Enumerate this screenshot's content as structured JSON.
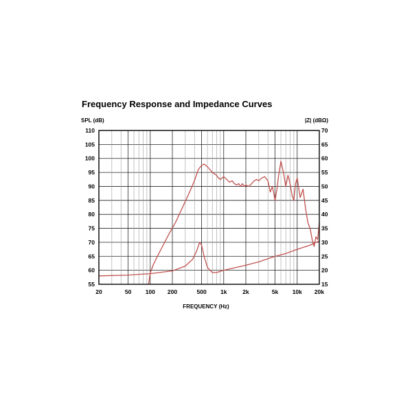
{
  "chart_data": {
    "type": "line",
    "title": "Frequency Response and Impedance Curves",
    "xlabel": "FREQUENCY (Hz)",
    "ylabel_left": "SPL (dB)",
    "ylabel_right": "|Z| (dBΩ)",
    "x_scale": "log",
    "xlim": [
      20,
      20000
    ],
    "ylim_left": [
      55,
      110
    ],
    "ylim_right": [
      15,
      70
    ],
    "grid": true,
    "x_ticks": [
      {
        "value": 20,
        "label": "20"
      },
      {
        "value": 50,
        "label": "50"
      },
      {
        "value": 100,
        "label": "100"
      },
      {
        "value": 200,
        "label": "200"
      },
      {
        "value": 500,
        "label": "500"
      },
      {
        "value": 1000,
        "label": "1k"
      },
      {
        "value": 2000,
        "label": "2k"
      },
      {
        "value": 5000,
        "label": "5k"
      },
      {
        "value": 10000,
        "label": "10k"
      },
      {
        "value": 20000,
        "label": "20k"
      }
    ],
    "y_ticks_left": [
      "55",
      "60",
      "65",
      "70",
      "75",
      "80",
      "85",
      "90",
      "95",
      "100",
      "105",
      "110"
    ],
    "y_ticks_right": [
      "15",
      "20",
      "25",
      "30",
      "35",
      "40",
      "45",
      "50",
      "55",
      "60",
      "65",
      "70"
    ],
    "series": [
      {
        "axis": "left",
        "color": "#c0504d",
        "points": [
          [
            95,
            55
          ],
          [
            100,
            59
          ],
          [
            110,
            62
          ],
          [
            125,
            65
          ],
          [
            150,
            69
          ],
          [
            180,
            73
          ],
          [
            220,
            77
          ],
          [
            270,
            82
          ],
          [
            330,
            87
          ],
          [
            400,
            92
          ],
          [
            450,
            96
          ],
          [
            500,
            97.5
          ],
          [
            540,
            98
          ],
          [
            600,
            97
          ],
          [
            650,
            96
          ],
          [
            700,
            95
          ],
          [
            800,
            94
          ],
          [
            850,
            93
          ],
          [
            900,
            92.5
          ],
          [
            1000,
            93.5
          ],
          [
            1100,
            92.5
          ],
          [
            1200,
            91.5
          ],
          [
            1300,
            92
          ],
          [
            1400,
            91
          ],
          [
            1500,
            90.5
          ],
          [
            1600,
            91
          ],
          [
            1700,
            90
          ],
          [
            1800,
            91
          ],
          [
            1900,
            90
          ],
          [
            2000,
            90.5
          ],
          [
            2200,
            90
          ],
          [
            2400,
            91
          ],
          [
            2600,
            92
          ],
          [
            2800,
            92.5
          ],
          [
            3000,
            92
          ],
          [
            3300,
            93
          ],
          [
            3600,
            93.5
          ],
          [
            4000,
            92
          ],
          [
            4300,
            88
          ],
          [
            4600,
            90
          ],
          [
            5000,
            85
          ],
          [
            5300,
            89
          ],
          [
            5600,
            94
          ],
          [
            6000,
            99
          ],
          [
            6500,
            95
          ],
          [
            7000,
            90
          ],
          [
            7500,
            94
          ],
          [
            8000,
            91
          ],
          [
            8500,
            87
          ],
          [
            9000,
            85
          ],
          [
            9500,
            91
          ],
          [
            10000,
            93
          ],
          [
            11000,
            86
          ],
          [
            12000,
            89
          ],
          [
            13000,
            82
          ],
          [
            14000,
            77
          ],
          [
            15000,
            75
          ],
          [
            16000,
            71
          ],
          [
            17000,
            68.5
          ],
          [
            18000,
            72
          ],
          [
            19000,
            71
          ],
          [
            20000,
            77
          ]
        ]
      },
      {
        "axis": "right",
        "color": "#c0504d",
        "points": [
          [
            20,
            18
          ],
          [
            50,
            18.3
          ],
          [
            100,
            18.8
          ],
          [
            200,
            19.8
          ],
          [
            300,
            21.5
          ],
          [
            380,
            24
          ],
          [
            430,
            27
          ],
          [
            470,
            30
          ],
          [
            500,
            29
          ],
          [
            540,
            25
          ],
          [
            600,
            21
          ],
          [
            700,
            19.2
          ],
          [
            800,
            19.2
          ],
          [
            1000,
            20
          ],
          [
            2000,
            21.8
          ],
          [
            3000,
            23
          ],
          [
            5000,
            25
          ],
          [
            7000,
            26
          ],
          [
            10000,
            27.5
          ],
          [
            15000,
            29
          ],
          [
            20000,
            30.5
          ]
        ]
      }
    ]
  }
}
